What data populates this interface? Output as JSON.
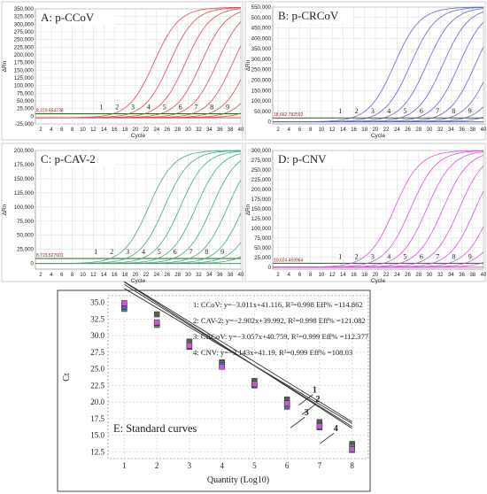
{
  "chart_data": [
    {
      "id": "A",
      "type": "line",
      "title": "A: p-CCoV",
      "xlabel": "Cycle",
      "ylabel": "ΔRn",
      "color": "#d9434f",
      "threshold_label": "8,319.654738",
      "xlim": [
        1,
        40
      ],
      "ylim": [
        -25000,
        350000
      ],
      "xticks": [
        2,
        4,
        6,
        8,
        10,
        12,
        14,
        16,
        18,
        20,
        22,
        24,
        26,
        28,
        30,
        32,
        34,
        36,
        38,
        40
      ],
      "yticks": [
        -25000,
        0,
        25000,
        50000,
        75000,
        100000,
        125000,
        150000,
        175000,
        200000,
        225000,
        250000,
        275000,
        300000,
        325000,
        350000
      ],
      "ytick_labels": [
        "-25,000",
        "0",
        "25,000",
        "50,000",
        "75,000",
        "100,000",
        "125,000",
        "150,000",
        "175,000",
        "200,000",
        "225,000",
        "250,000",
        "275,000",
        "300,000",
        "325,000",
        "350,000"
      ],
      "threshold": 8320,
      "baseline": -5000,
      "plateau": 355000,
      "curve_ct": [
        15,
        18,
        21,
        24,
        27,
        30,
        33,
        36,
        39
      ],
      "curve_labels": [
        "1",
        "2",
        "3",
        "4",
        "5",
        "6",
        "7",
        "8",
        "9"
      ],
      "curve_label_x": [
        13.5,
        16.5,
        19.5,
        22.5,
        25.5,
        28.5,
        31.5,
        34.5,
        37.5
      ]
    },
    {
      "id": "B",
      "type": "line",
      "title": "B: p-CRCoV",
      "xlabel": "Cycle",
      "ylabel": "ΔRn",
      "color": "#5862c8",
      "threshold_label": "18,662.782592",
      "xlim": [
        1,
        40
      ],
      "ylim": [
        -10000,
        550000
      ],
      "xticks": [
        2,
        4,
        6,
        8,
        10,
        12,
        14,
        16,
        18,
        20,
        22,
        24,
        26,
        28,
        30,
        32,
        34,
        36,
        38,
        40
      ],
      "yticks": [
        0,
        50000,
        100000,
        150000,
        200000,
        250000,
        300000,
        350000,
        400000,
        450000,
        500000,
        550000
      ],
      "ytick_labels": [
        "0",
        "50,000",
        "100,000",
        "150,000",
        "200,000",
        "250,000",
        "300,000",
        "350,000",
        "400,000",
        "450,000",
        "500,000",
        "550,000"
      ],
      "threshold": 18663,
      "baseline": 0,
      "plateau": 550000,
      "curve_ct": [
        15,
        18,
        21,
        24,
        27,
        30,
        33,
        36,
        39
      ],
      "curve_labels": [
        "1",
        "2",
        "3",
        "4",
        "5",
        "6",
        "7",
        "8",
        "9"
      ],
      "curve_label_x": [
        13.5,
        16.5,
        19.5,
        22.5,
        25.5,
        28.5,
        31.5,
        34.5,
        37.5
      ]
    },
    {
      "id": "C",
      "type": "line",
      "title": "C: p-CAV-2",
      "xlabel": "Cycle",
      "ylabel": "ΔRn",
      "color": "#3fa37a",
      "threshold_label": "8,723.527601",
      "xlim": [
        1,
        40
      ],
      "ylim": [
        -10000,
        200000
      ],
      "xticks": [
        2,
        4,
        6,
        8,
        10,
        12,
        14,
        16,
        18,
        20,
        22,
        24,
        26,
        28,
        30,
        32,
        34,
        36,
        38,
        40
      ],
      "yticks": [
        0,
        25000,
        50000,
        75000,
        100000,
        125000,
        150000,
        175000,
        200000
      ],
      "ytick_labels": [
        "0",
        "25,000",
        "50,000",
        "75,000",
        "100,000",
        "125,000",
        "150,000",
        "175,000",
        "200,000"
      ],
      "threshold": 8724,
      "baseline": 0,
      "plateau": 200000,
      "curve_ct": [
        14,
        17,
        20,
        23,
        26,
        29,
        32,
        35,
        38
      ],
      "curve_labels": [
        "1",
        "2",
        "3",
        "4",
        "5",
        "6",
        "7",
        "8",
        "9"
      ],
      "curve_label_x": [
        12.5,
        15.5,
        18.5,
        21.5,
        24.5,
        27.5,
        30.5,
        33.5,
        36.5
      ]
    },
    {
      "id": "D",
      "type": "line",
      "title": "D: p-CNV",
      "xlabel": "Cycle",
      "ylabel": "ΔRn",
      "color": "#d64fd6",
      "threshold_label": "10,024.459964",
      "xlim": [
        1,
        40
      ],
      "ylim": [
        -5000,
        300000
      ],
      "xticks": [
        2,
        4,
        6,
        8,
        10,
        12,
        14,
        16,
        18,
        20,
        22,
        24,
        26,
        28,
        30,
        32,
        34,
        36,
        38,
        40
      ],
      "yticks": [
        0,
        25000,
        50000,
        75000,
        100000,
        125000,
        150000,
        175000,
        200000,
        225000,
        250000,
        275000,
        300000
      ],
      "ytick_labels": [
        "0",
        "25,000",
        "50,000",
        "75,000",
        "100,000",
        "125,000",
        "150,000",
        "175,000",
        "200,000",
        "225,000",
        "250,000",
        "275,000",
        "300,000"
      ],
      "threshold": 10024,
      "baseline": 0,
      "plateau": 300000,
      "curve_ct": [
        15,
        18,
        21,
        24,
        27,
        30,
        33,
        36,
        39
      ],
      "curve_labels": [
        "1",
        "2",
        "3",
        "4",
        "5",
        "6",
        "7",
        "8",
        "9"
      ],
      "curve_label_x": [
        13.5,
        16.5,
        19.5,
        22.5,
        25.5,
        28.5,
        31.5,
        34.5,
        37.5
      ]
    },
    {
      "id": "E",
      "type": "scatter",
      "title": "E: Standard curves",
      "xlabel": "Quantity (Log10)",
      "ylabel": "Ct",
      "xlim": [
        0.5,
        8.5
      ],
      "ylim": [
        11.5,
        36
      ],
      "xticks": [
        1,
        2,
        3,
        4,
        5,
        6,
        7,
        8
      ],
      "yticks": [
        12.5,
        15.0,
        17.5,
        20.0,
        22.5,
        25.0,
        27.5,
        30.0,
        32.5,
        35.0
      ],
      "ytick_labels": [
        "12.5",
        "15.0",
        "17.5",
        "20.0",
        "22.5",
        "25.0",
        "27.5",
        "30.0",
        "32.5",
        "35.0"
      ],
      "x": [
        1,
        2,
        3,
        4,
        5,
        6,
        7,
        8
      ],
      "series": [
        {
          "name": "1",
          "equation": "1: CCoV: y=−3.011x+41.116, R²=0.998 Eff% =114.862",
          "slope": -3.011,
          "intercept": 41.116,
          "color": "#333333",
          "marker": "#5a5a5a",
          "values": [
            34.6,
            33.2,
            29.1,
            26.0,
            23.2,
            20.4,
            17.0,
            13.7
          ]
        },
        {
          "name": "2",
          "equation": "2: CAV-2: y=−2.902x+39.992, R²=0.998 Eff% =121.082",
          "slope": -2.902,
          "intercept": 39.992,
          "color": "#333333",
          "marker": "#4f8a5c",
          "values": [
            34.0,
            31.6,
            28.3,
            25.8,
            22.5,
            19.6,
            16.5,
            13.3
          ]
        },
        {
          "name": "3",
          "equation": "3: CRCoV: y=−3.057x+40.759, R²=0.999 Eff% =112.377",
          "slope": -3.057,
          "intercept": 40.759,
          "color": "#333333",
          "marker": "#5560b8",
          "values": [
            34.3,
            31.9,
            28.4,
            25.6,
            22.6,
            19.3,
            16.2,
            12.8
          ]
        },
        {
          "name": "4",
          "equation": "4: CNV: y=−3.143x+41.19, R²=0.999 Eff% =108.03",
          "slope": -3.143,
          "intercept": 41.19,
          "color": "#333333",
          "marker": "#c75bc7",
          "values": [
            34.9,
            32.0,
            28.5,
            25.3,
            22.7,
            19.8,
            16.4,
            12.9
          ]
        }
      ],
      "line_labels": [
        "1",
        "2",
        "3",
        "4"
      ],
      "line_label_x": [
        6.85,
        6.95,
        6.6,
        7.5
      ],
      "line_label_y": [
        21.4,
        20.0,
        18.0,
        15.6
      ]
    }
  ]
}
